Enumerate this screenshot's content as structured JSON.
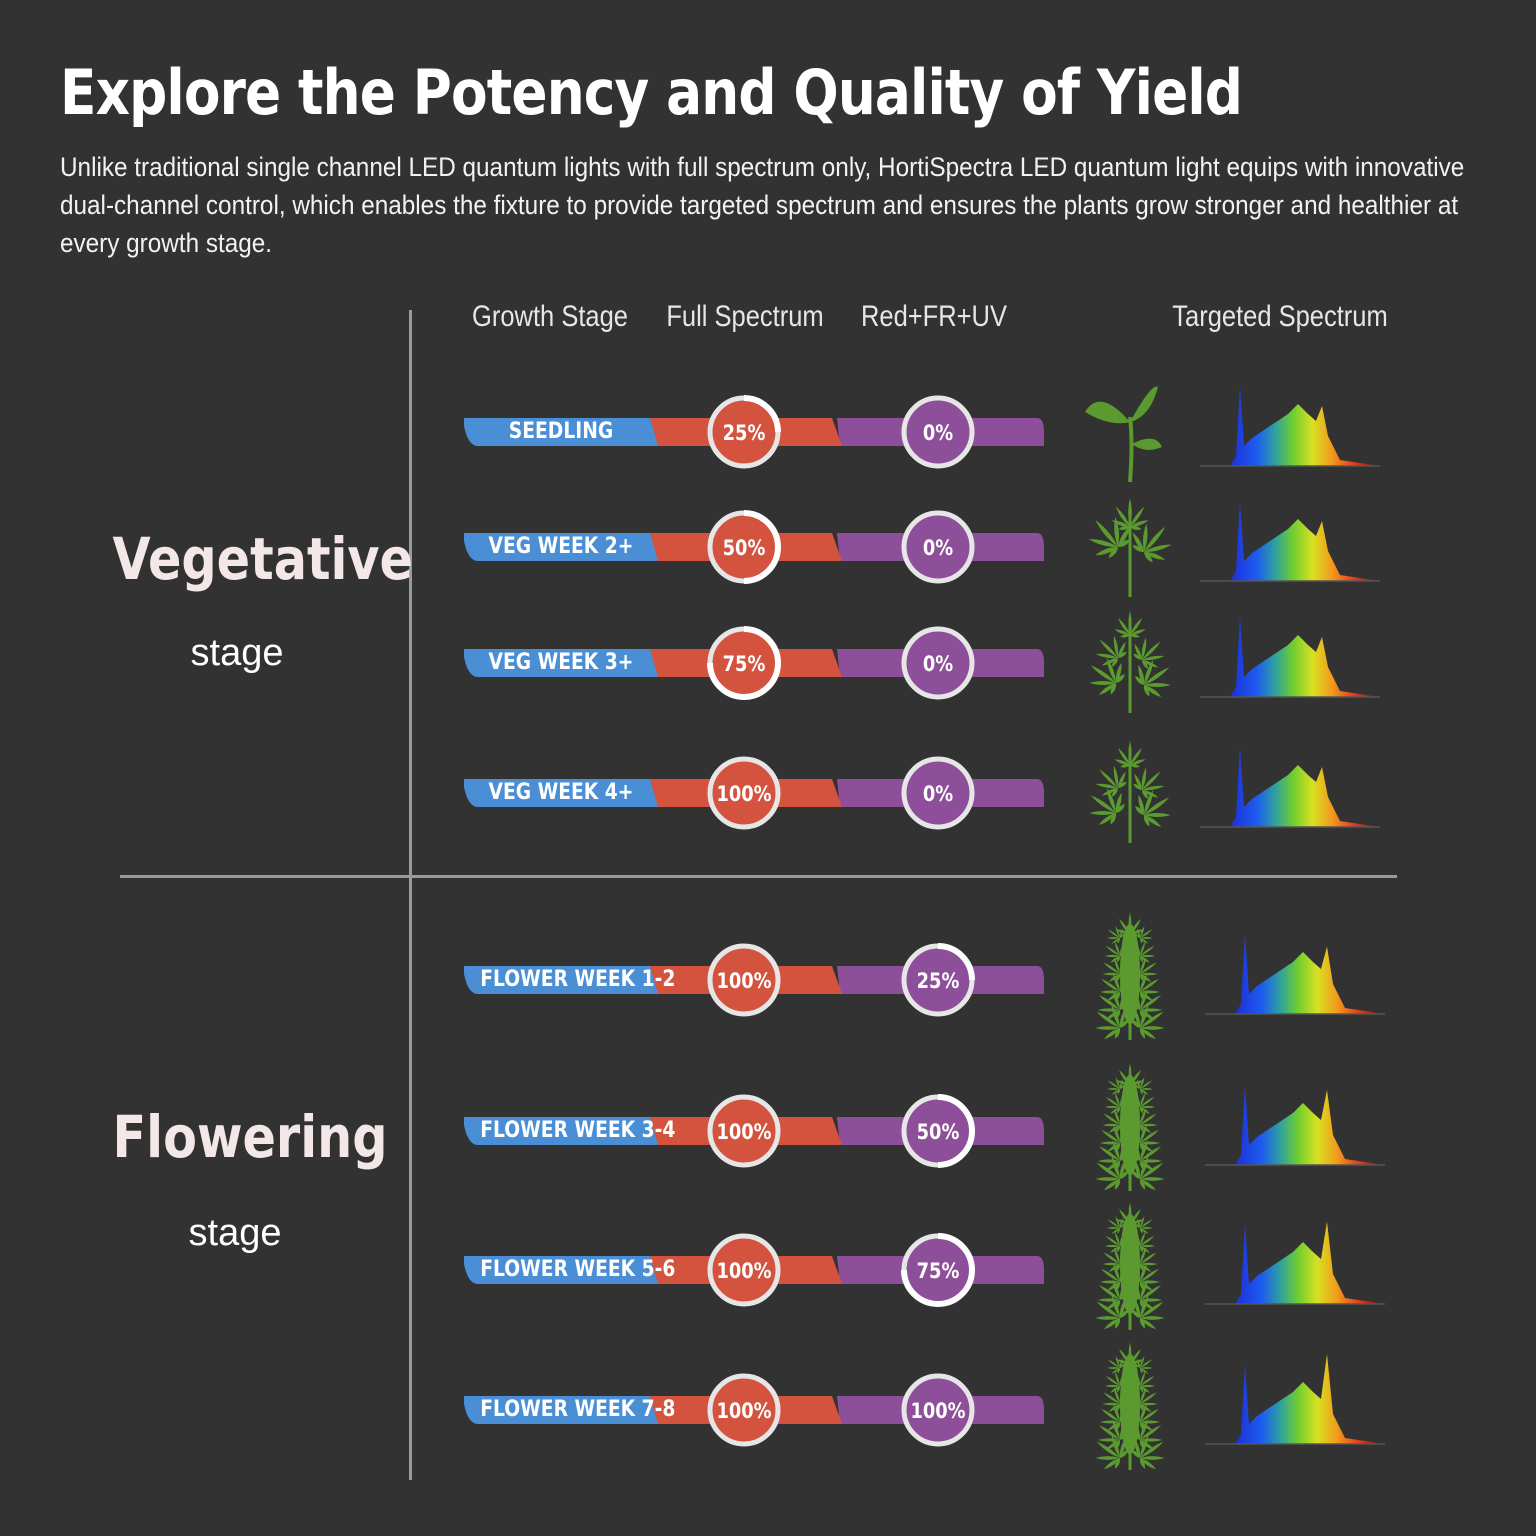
{
  "header": {
    "title": "Explore the Potency and Quality of Yield",
    "intro": "Unlike traditional single channel LED quantum lights with full spectrum only, HortiSpectra LED quantum light equips with innovative dual-channel control, which enables the fixture to provide targeted spectrum and ensures the plants grow stronger and healthier at every growth stage."
  },
  "columns": {
    "stage": "Growth Stage",
    "full": "Full Spectrum",
    "red": "Red+FR+UV",
    "targeted": "Targeted Spectrum"
  },
  "groups": {
    "vegetative": {
      "name": "Vegetative",
      "sub": "stage"
    },
    "flowering": {
      "name": "Flowering",
      "sub": "stage"
    }
  },
  "colors": {
    "background": "#323232",
    "stage_blue": "#4a8fd6",
    "full_red": "#d3533f",
    "red_fr_uv_purple": "#8e4f9a",
    "plant_green": "#5a9a2e"
  },
  "rows": [
    {
      "stage": "SEEDLING",
      "full_label": "25%",
      "full": 0.25,
      "red_label": "0%",
      "red": 0,
      "plant_icon": "seedling-icon"
    },
    {
      "stage": "VEG WEEK 2+",
      "full_label": "50%",
      "full": 0.5,
      "red_label": "0%",
      "red": 0,
      "plant_icon": "cannabis-leaf-icon"
    },
    {
      "stage": "VEG WEEK 3+",
      "full_label": "75%",
      "full": 0.75,
      "red_label": "0%",
      "red": 0,
      "plant_icon": "cannabis-plant-icon"
    },
    {
      "stage": "VEG WEEK 4+",
      "full_label": "100%",
      "full": 1,
      "red_label": "0%",
      "red": 0,
      "plant_icon": "cannabis-plant-icon"
    },
    {
      "stage": "FLOWER WEEK  1-2",
      "full_label": "100%",
      "full": 1,
      "red_label": "25%",
      "red": 0.25,
      "plant_icon": "flowering-plant-icon"
    },
    {
      "stage": "FLOWER WEEK 3-4",
      "full_label": "100%",
      "full": 1,
      "red_label": "50%",
      "red": 0.5,
      "plant_icon": "flowering-plant-icon"
    },
    {
      "stage": "FLOWER WEEK 5-6",
      "full_label": "100%",
      "full": 1,
      "red_label": "75%",
      "red": 0.75,
      "plant_icon": "flowering-plant-icon"
    },
    {
      "stage": "FLOWER WEEK 7-8",
      "full_label": "100%",
      "full": 1,
      "red_label": "100%",
      "red": 1,
      "plant_icon": "flowering-plant-icon"
    }
  ]
}
